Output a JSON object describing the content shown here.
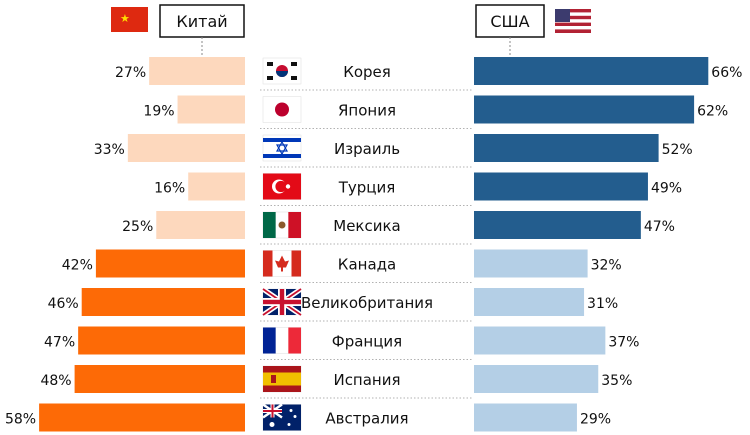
{
  "chart_data": {
    "type": "bar",
    "layout": "diverging-horizontal",
    "title": "",
    "legend": {
      "left": {
        "label": "Китай",
        "flag": "china-flag-icon"
      },
      "right": {
        "label": "США",
        "flag": "usa-flag-icon"
      }
    },
    "categories": [
      "Корея",
      "Япония",
      "Израиль",
      "Турция",
      "Мексика",
      "Канада",
      "Великобритания",
      "Франция",
      "Испания",
      "Австралия"
    ],
    "flags": [
      "south-korea-flag-icon",
      "japan-flag-icon",
      "israel-flag-icon",
      "turkey-flag-icon",
      "mexico-flag-icon",
      "canada-flag-icon",
      "uk-flag-icon",
      "france-flag-icon",
      "spain-flag-icon",
      "australia-flag-icon"
    ],
    "series": [
      {
        "side": "left",
        "values": [
          27,
          19,
          33,
          16,
          25,
          42,
          46,
          47,
          48,
          58
        ]
      },
      {
        "side": "right",
        "values": [
          66,
          62,
          52,
          49,
          47,
          32,
          31,
          37,
          35,
          29
        ]
      }
    ],
    "value_labels": {
      "left": [
        "27%",
        "19%",
        "33%",
        "16%",
        "25%",
        "42%",
        "46%",
        "47%",
        "48%",
        "58%"
      ],
      "right": [
        "66%",
        "62%",
        "52%",
        "49%",
        "47%",
        "32%",
        "31%",
        "37%",
        "35%",
        "29%"
      ]
    },
    "xlim": [
      0,
      100
    ],
    "colors": {
      "left_light": "#fdd8bd",
      "left_dark": "#fd6a06",
      "right_dark": "#235d8e",
      "right_light": "#b4cfe6",
      "highlight_split_index": 5
    },
    "grid": false
  }
}
